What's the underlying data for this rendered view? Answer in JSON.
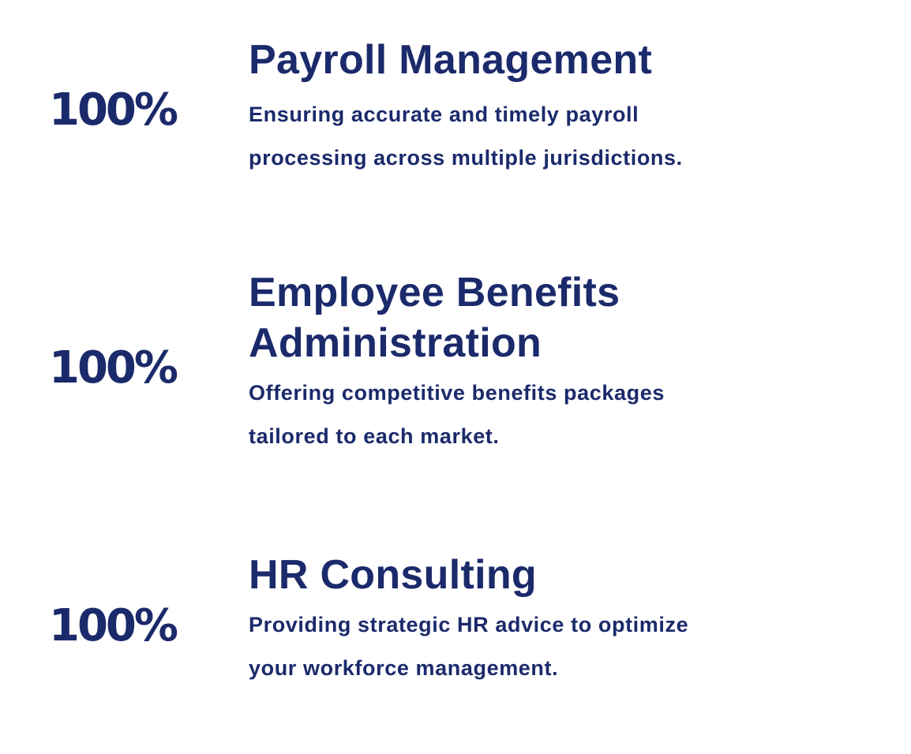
{
  "colors": {
    "text": "#1b2a6b",
    "background": "#ffffff"
  },
  "stats": [
    {
      "percent": "100%",
      "title": "Payroll Management",
      "description_line1": "Ensuring accurate and timely payroll",
      "description_line2": "processing across multiple jurisdictions."
    },
    {
      "percent": "100%",
      "title_line1": "Employee Benefits",
      "title_line2": "Administration",
      "description_line1": "Offering competitive benefits packages",
      "description_line2": "tailored to each market."
    },
    {
      "percent": "100%",
      "title": "HR Consulting",
      "description_line1": "Providing strategic HR advice to optimize",
      "description_line2": "your workforce management."
    }
  ]
}
